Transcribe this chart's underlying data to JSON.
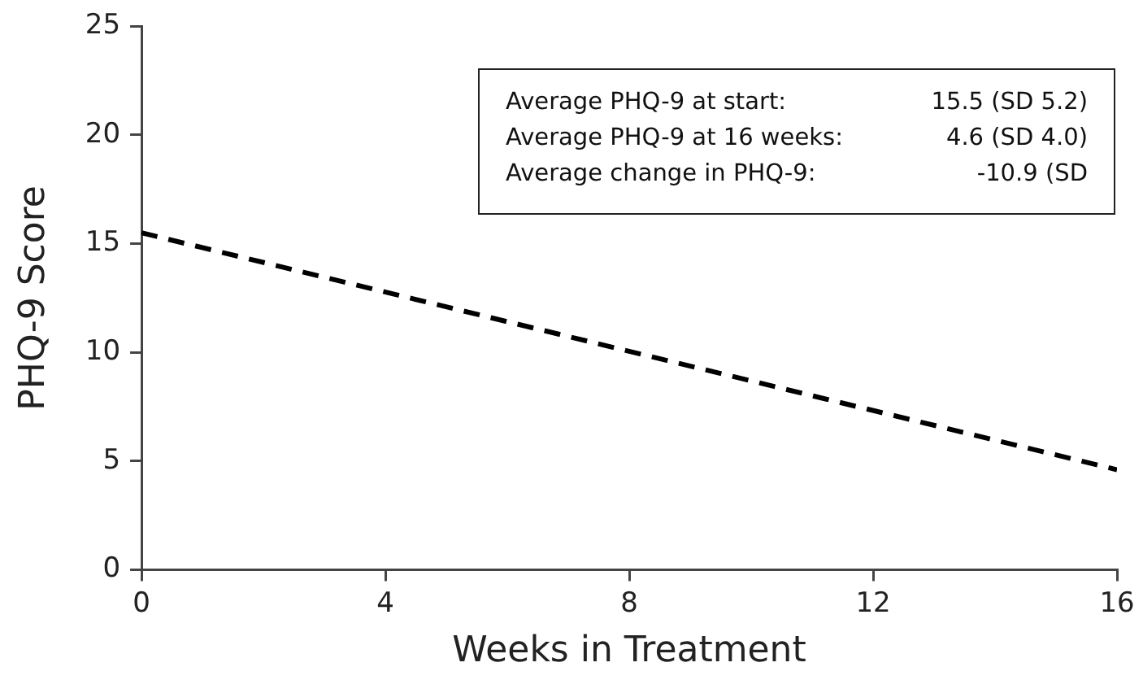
{
  "chart_data": {
    "type": "line",
    "xlabel": "Weeks in Treatment",
    "ylabel": "PHQ-9 Score",
    "x": [
      0,
      16
    ],
    "series": [
      {
        "color": "#000000",
        "values": [
          15.5,
          4.6
        ]
      }
    ],
    "xlim": [
      0,
      16
    ],
    "xticks": [
      0,
      4,
      8,
      12,
      16
    ],
    "ylim": [
      0,
      25
    ],
    "yticks": [
      0,
      5,
      10,
      15,
      20,
      25
    ],
    "grid": false,
    "legend": false,
    "marker": "none",
    "line_style": "dashed",
    "annotations": [
      "Average PHQ-9 at start:",
      "15.5 (SD 5.2)",
      "Average PHQ-9 at 16 weeks:",
      "4.6 (SD 4.0)",
      "Average change in PHQ-9:",
      "-10.9 (SD"
    ]
  }
}
